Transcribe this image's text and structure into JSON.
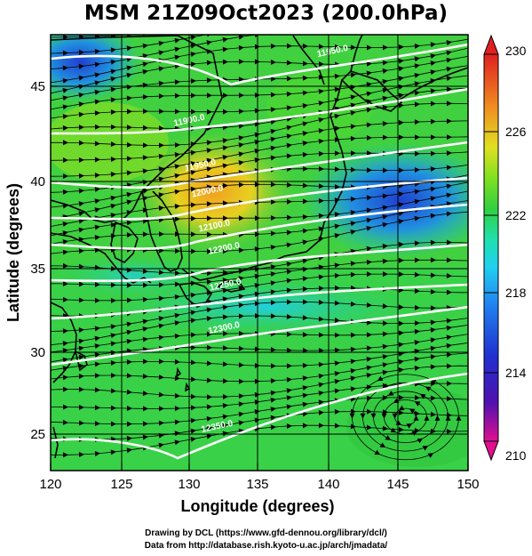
{
  "title": "MSM 21Z09Oct2023 (200.0hPa)",
  "xlabel": "Longitude (degrees)",
  "ylabel": "Latitude  (degrees)",
  "credit_line1": "Drawing by DCL (https://www.gfd-dennou.org/library/dcl/)",
  "credit_line2": "Data from http://database.rish.kyoto-u.ac.jp/arch/jmadata/",
  "map": {
    "lon_range": [
      120,
      150
    ],
    "lat_range": [
      22.4,
      47.6
    ],
    "lon_ticks": [
      120,
      125,
      130,
      135,
      140,
      145,
      150
    ],
    "lon_tick_labels": [
      "120",
      "125",
      "130",
      "135",
      "140",
      "145",
      "150"
    ],
    "lat_ticks": [
      25,
      30,
      35,
      40,
      45
    ],
    "lat_tick_labels": [
      "25",
      "30",
      "35",
      "40",
      "45"
    ],
    "grid": true,
    "shaded_field": "temperature (K)",
    "vectors": "streamlines with arrows",
    "contour_color": "#ffffff"
  },
  "colorbar": {
    "range": [
      210,
      230
    ],
    "ticks": [
      210,
      214,
      218,
      222,
      226,
      230
    ],
    "tick_labels": [
      "210",
      "214",
      "218",
      "222",
      "226",
      "230"
    ],
    "colors": [
      "#e01090",
      "#3020c0",
      "#2060f0",
      "#20c0f0",
      "#20e0a0",
      "#30d030",
      "#a0e020",
      "#f0d020",
      "#f08020",
      "#e02020"
    ]
  },
  "contour_labels": [
    {
      "text": "11900.0",
      "lon": 130.0,
      "lat": 42.5
    },
    {
      "text": "11950.0",
      "lon": 130.8,
      "lat": 39.9
    },
    {
      "text": "12000.0",
      "lon": 131.3,
      "lat": 38.4
    },
    {
      "text": "12100.0",
      "lon": 131.8,
      "lat": 36.4
    },
    {
      "text": "12200.0",
      "lon": 132.5,
      "lat": 35.1
    },
    {
      "text": "12250.0",
      "lon": 132.6,
      "lat": 33.0
    },
    {
      "text": "12300.0",
      "lon": 132.5,
      "lat": 30.5
    },
    {
      "text": "12350.0",
      "lon": 132.0,
      "lat": 24.8
    },
    {
      "text": "11950.0",
      "lon": 140.3,
      "lat": 46.5
    }
  ]
}
